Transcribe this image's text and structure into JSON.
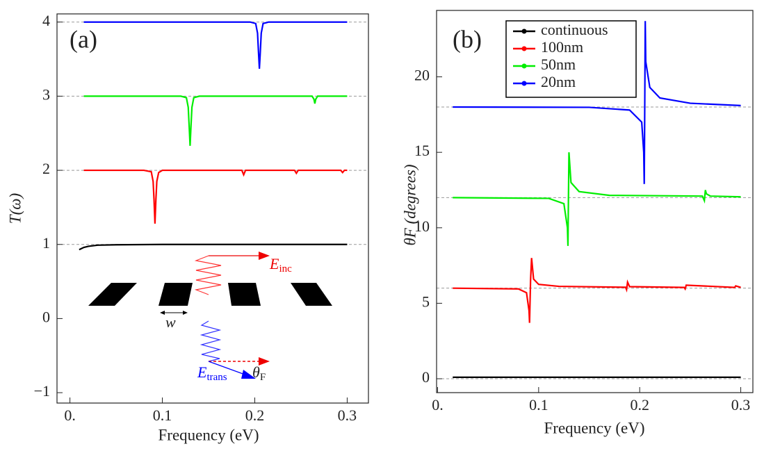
{
  "chart_data": [
    {
      "type": "line",
      "panel_label": "(a)",
      "x_label": "Frequency (eV)",
      "y_label": "T(ω)",
      "xlim": [
        -0.014,
        0.323
      ],
      "ylim": [
        -1.14,
        4.11
      ],
      "xticks": [
        {
          "value": 0,
          "label": "0."
        },
        0.1,
        0.2,
        0.3
      ],
      "yticks": [
        {
          "value": -1,
          "label": "−1"
        },
        0,
        1,
        2,
        3,
        4
      ],
      "reference_lines": [
        1,
        2,
        3,
        4
      ],
      "inset_labels": [
        {
          "text": "w"
        },
        {
          "text": "E",
          "sub": "inc"
        },
        {
          "text": "E",
          "sub": "trans"
        },
        {
          "text": "θ",
          "sub": "F"
        }
      ],
      "series": [
        {
          "color": "#000000",
          "x": [
            0.01,
            0.015,
            0.02,
            0.03,
            0.05,
            0.1,
            0.2,
            0.3
          ],
          "values": [
            0.93,
            0.96,
            0.975,
            0.99,
            0.995,
            1,
            1,
            1
          ]
        },
        {
          "color": "#ff0000",
          "x": [
            0.015,
            0.08,
            0.088,
            0.09,
            0.091,
            0.092,
            0.093,
            0.094,
            0.096,
            0.1,
            0.186,
            0.188,
            0.19,
            0.243,
            0.245,
            0.247,
            0.293,
            0.295,
            0.297,
            0.3
          ],
          "values": [
            2,
            2,
            1.98,
            1.85,
            1.6,
            1.28,
            1.6,
            1.85,
            1.97,
            2,
            2,
            1.94,
            2,
            2,
            1.96,
            2,
            2,
            1.97,
            2,
            2
          ]
        },
        {
          "color": "#00ee00",
          "x": [
            0.015,
            0.12,
            0.126,
            0.128,
            0.129,
            0.13,
            0.131,
            0.132,
            0.134,
            0.14,
            0.262,
            0.264,
            0.265,
            0.266,
            0.268,
            0.3
          ],
          "values": [
            3,
            3,
            2.98,
            2.85,
            2.6,
            2.33,
            2.6,
            2.85,
            2.98,
            3,
            3,
            2.96,
            2.9,
            2.96,
            3,
            3
          ]
        },
        {
          "color": "#0000ff",
          "x": [
            0.015,
            0.195,
            0.201,
            0.203,
            0.204,
            0.205,
            0.206,
            0.207,
            0.209,
            0.215,
            0.3
          ],
          "values": [
            4,
            4,
            3.98,
            3.85,
            3.6,
            3.37,
            3.6,
            3.85,
            3.98,
            4,
            4
          ]
        }
      ]
    },
    {
      "type": "line",
      "panel_label": "(b)",
      "x_label": "Frequency (eV)",
      "y_label": "θF (degrees)",
      "xlim": [
        -0.001,
        0.312
      ],
      "ylim": [
        -0.92,
        24.4
      ],
      "xticks": [
        {
          "value": 0,
          "label": "0."
        },
        0.1,
        0.2,
        0.3
      ],
      "yticks": [
        0,
        5,
        10,
        15,
        20
      ],
      "reference_lines": [
        0,
        6,
        12,
        18
      ],
      "legend": "upper center",
      "series": [
        {
          "name": "continuous",
          "color": "#000000",
          "x": [
            0.015,
            0.3
          ],
          "values": [
            0.1,
            0.1
          ]
        },
        {
          "name": "100nm",
          "color": "#ff0000",
          "x": [
            0.015,
            0.08,
            0.088,
            0.0905,
            0.091,
            0.092,
            0.093,
            0.095,
            0.1,
            0.12,
            0.186,
            0.187,
            0.188,
            0.19,
            0.244,
            0.245,
            0.246,
            0.294,
            0.295,
            0.3
          ],
          "values": [
            6,
            5.95,
            5.7,
            4.5,
            3.7,
            6.5,
            8,
            6.6,
            6.25,
            6.12,
            6.06,
            5.9,
            6.4,
            6.1,
            6.05,
            5.95,
            6.2,
            6.05,
            6.15,
            6.05
          ]
        },
        {
          "name": "50nm",
          "color": "#00ee00",
          "x": [
            0.015,
            0.11,
            0.125,
            0.1285,
            0.129,
            0.1295,
            0.13,
            0.132,
            0.14,
            0.17,
            0.262,
            0.264,
            0.265,
            0.266,
            0.27,
            0.3
          ],
          "values": [
            12,
            11.95,
            11.6,
            10,
            8.8,
            12,
            15,
            13,
            12.4,
            12.15,
            12.1,
            11.8,
            12.5,
            12.25,
            12.1,
            12.05
          ]
        },
        {
          "name": "20nm",
          "color": "#0000ff",
          "x": [
            0.015,
            0.15,
            0.19,
            0.202,
            0.204,
            0.2045,
            0.205,
            0.2055,
            0.206,
            0.21,
            0.22,
            0.25,
            0.3
          ],
          "values": [
            18,
            17.98,
            17.8,
            17,
            15,
            12.9,
            18,
            23.7,
            21,
            19.3,
            18.6,
            18.25,
            18.1
          ]
        }
      ]
    }
  ]
}
